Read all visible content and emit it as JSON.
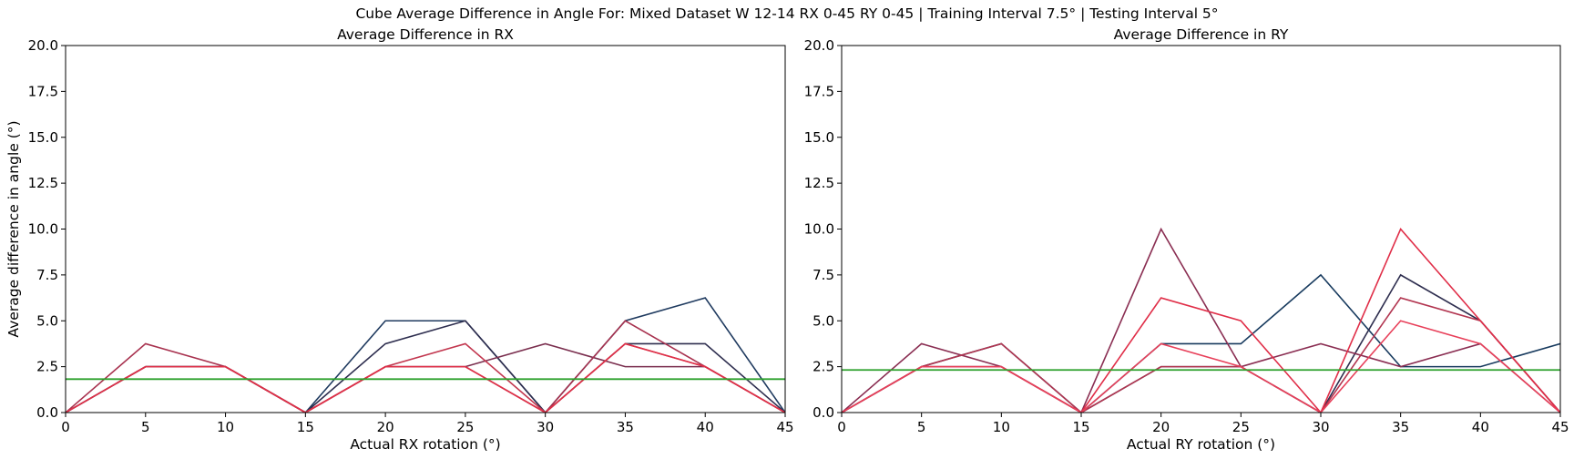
{
  "figure": {
    "suptitle": "Cube Average Difference in Angle For: Mixed Dataset W 12-14 RX 0-45 RY 0-45 | Training Interval 7.5° | Testing Interval 5°"
  },
  "chart_data": [
    {
      "type": "line",
      "title": "Average Difference in RX",
      "xlabel": "Actual RX rotation (°)",
      "ylabel": "Average difference in angle (°)",
      "xlim": [
        0,
        45
      ],
      "ylim": [
        0,
        20
      ],
      "xticks": [
        "0",
        "5",
        "10",
        "15",
        "20",
        "25",
        "30",
        "35",
        "40",
        "45"
      ],
      "yticks": [
        "0.0",
        "2.5",
        "5.0",
        "7.5",
        "10.0",
        "12.5",
        "15.0",
        "17.5",
        "20.0"
      ],
      "x": [
        0,
        5,
        10,
        15,
        20,
        25,
        30,
        35,
        40,
        45
      ],
      "series": [
        {
          "color": "#1f3a5f",
          "values": [
            0,
            2.5,
            2.5,
            0,
            5,
            5,
            0,
            5,
            6.25,
            0
          ]
        },
        {
          "color": "#2e2e4f",
          "values": [
            0,
            2.5,
            2.5,
            0,
            3.75,
            5,
            0,
            3.75,
            3.75,
            0
          ]
        },
        {
          "color": "#7a2e4e",
          "values": [
            0,
            2.5,
            2.5,
            0,
            2.5,
            2.5,
            3.75,
            2.5,
            2.5,
            0
          ]
        },
        {
          "color": "#a8324f",
          "values": [
            0,
            3.75,
            2.5,
            0,
            2.5,
            2.5,
            0,
            5,
            2.5,
            0
          ]
        },
        {
          "color": "#c2374f",
          "values": [
            0,
            2.5,
            2.5,
            0,
            2.5,
            3.75,
            0,
            3.75,
            2.5,
            0
          ]
        },
        {
          "color": "#e03048",
          "values": [
            0,
            2.5,
            2.5,
            0,
            2.5,
            2.5,
            0,
            3.75,
            2.5,
            0
          ]
        }
      ],
      "hline": {
        "color": "#2ca02c",
        "value": 1.82
      }
    },
    {
      "type": "line",
      "title": "Average Difference in RY",
      "xlabel": "Actual RY rotation (°)",
      "ylabel": "",
      "xlim": [
        0,
        45
      ],
      "ylim": [
        0,
        20
      ],
      "xticks": [
        "0",
        "5",
        "10",
        "15",
        "20",
        "25",
        "30",
        "35",
        "40",
        "45"
      ],
      "yticks": [
        "0.0",
        "2.5",
        "5.0",
        "7.5",
        "10.0",
        "12.5",
        "15.0",
        "17.5",
        "20.0"
      ],
      "x": [
        0,
        5,
        10,
        15,
        20,
        25,
        30,
        35,
        40,
        45
      ],
      "series": [
        {
          "color": "#173a5e",
          "values": [
            0,
            2.5,
            3.75,
            0,
            3.75,
            3.75,
            7.5,
            2.5,
            2.5,
            3.75
          ]
        },
        {
          "color": "#2e2e4f",
          "values": [
            0,
            2.5,
            2.5,
            0,
            2.5,
            2.5,
            0,
            7.5,
            5,
            0
          ]
        },
        {
          "color": "#8a2e52",
          "values": [
            0,
            3.75,
            2.5,
            0,
            10,
            2.5,
            3.75,
            2.5,
            3.75,
            0
          ]
        },
        {
          "color": "#b23550",
          "values": [
            0,
            2.5,
            3.75,
            0,
            2.5,
            2.5,
            0,
            6.25,
            5,
            0
          ]
        },
        {
          "color": "#e02e48",
          "values": [
            0,
            2.5,
            2.5,
            0,
            6.25,
            5,
            0,
            10,
            5,
            0
          ]
        },
        {
          "color": "#e8405a",
          "values": [
            0,
            2.5,
            2.5,
            0,
            3.75,
            2.5,
            0,
            5,
            3.75,
            0
          ]
        }
      ],
      "hline": {
        "color": "#2ca02c",
        "value": 2.32
      }
    }
  ]
}
